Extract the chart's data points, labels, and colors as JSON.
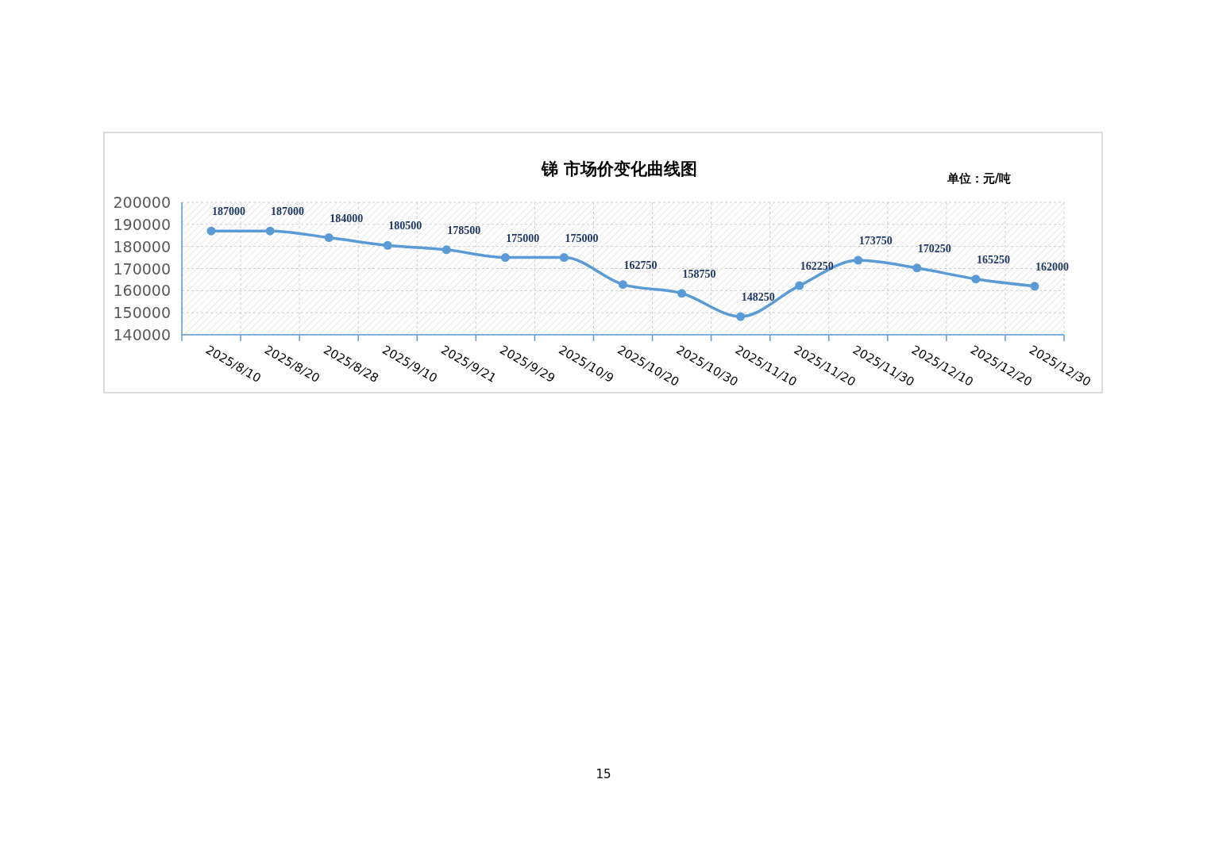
{
  "chart_data": {
    "type": "line",
    "title": "锑  市场价变化曲线图",
    "categories": [
      "2025/8/10",
      "2025/8/20",
      "2025/8/28",
      "2025/9/10",
      "2025/9/21",
      "2025/9/29",
      "2025/10/9",
      "2025/10/20",
      "2025/10/30",
      "2025/11/10",
      "2025/11/20",
      "2025/11/30",
      "2025/12/10",
      "2025/12/20",
      "2025/12/30"
    ],
    "series": [
      {
        "color": "#5b9bd5",
        "values": [
          187000,
          187000,
          184000,
          180500,
          178500,
          175000,
          175000,
          162750,
          158750,
          148250,
          162250,
          173750,
          170250,
          165250,
          162000
        ]
      }
    ],
    "ylim": [
      140000,
      200000
    ],
    "yticks": [
      140000,
      150000,
      160000,
      170000,
      180000,
      190000,
      200000
    ],
    "grid": true,
    "marker": "circle",
    "data_labels": true,
    "annotations": [
      "单位：元/吨",
      "15"
    ]
  }
}
